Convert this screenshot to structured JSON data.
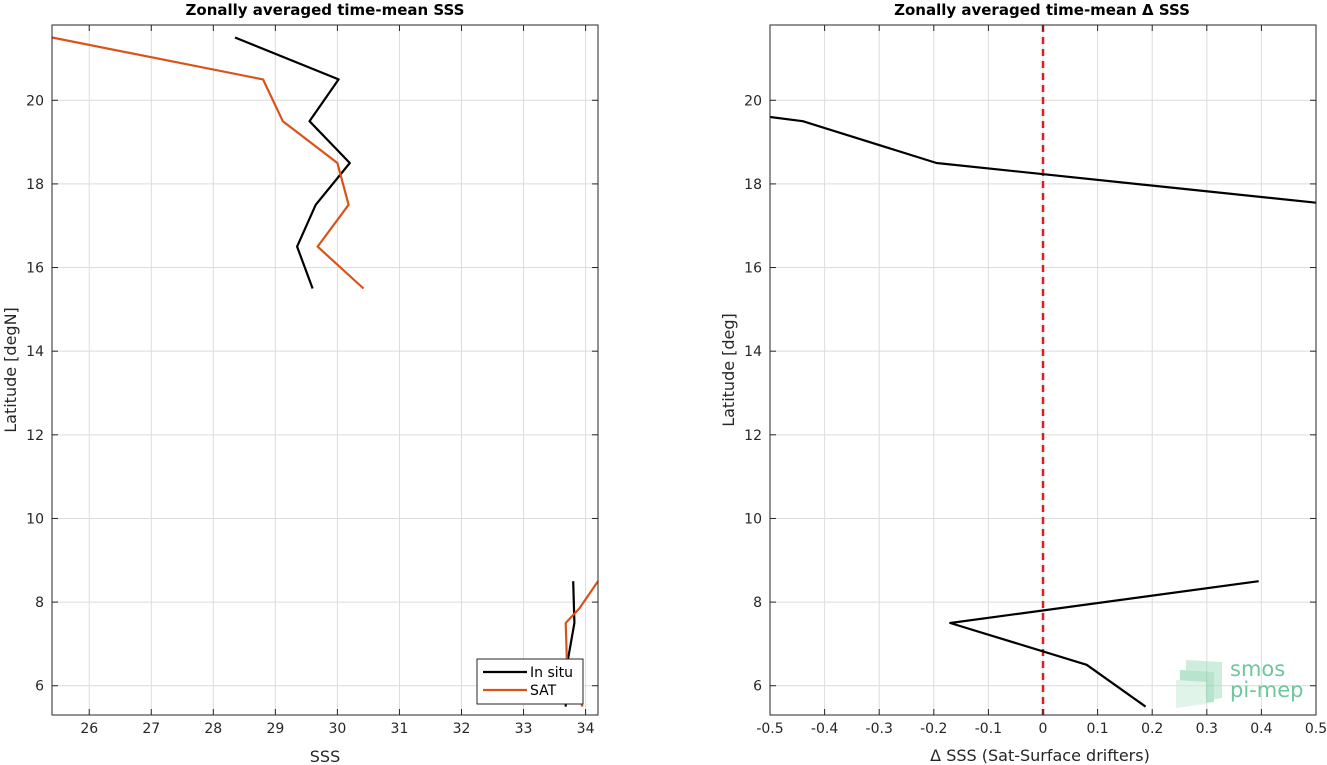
{
  "chart_data": [
    {
      "type": "line",
      "title": "Zonally averaged time-mean SSS",
      "xlabel": "SSS",
      "ylabel": "Latitude [degN]",
      "xlim": [
        25.4,
        34.2
      ],
      "ylim": [
        5.3,
        21.8
      ],
      "xticks": [
        26,
        27,
        28,
        29,
        30,
        31,
        32,
        33,
        34
      ],
      "yticks": [
        6,
        8,
        10,
        12,
        14,
        16,
        18,
        20
      ],
      "grid": true,
      "legend_position": "bottom-right",
      "series": [
        {
          "name": "In situ",
          "color": "#000000",
          "segments": [
            [
              [
                28.35,
                21.5
              ],
              [
                30.02,
                20.5
              ],
              [
                29.55,
                19.5
              ],
              [
                30.2,
                18.5
              ],
              [
                29.65,
                17.5
              ],
              [
                29.35,
                16.5
              ],
              [
                29.6,
                15.5
              ]
            ],
            [
              [
                33.8,
                8.5
              ],
              [
                33.82,
                7.5
              ],
              [
                33.7,
                6.5
              ],
              [
                33.68,
                5.5
              ]
            ]
          ]
        },
        {
          "name": "SAT",
          "color": "#d95319",
          "segments": [
            [
              [
                25.4,
                21.5
              ],
              [
                28.8,
                20.5
              ],
              [
                29.12,
                19.5
              ],
              [
                30.0,
                18.5
              ],
              [
                30.18,
                17.5
              ],
              [
                29.68,
                16.5
              ],
              [
                30.42,
                15.5
              ]
            ],
            [
              [
                34.2,
                8.5
              ],
              [
                33.9,
                7.85
              ],
              [
                33.68,
                7.5
              ],
              [
                33.7,
                6.5
              ],
              [
                33.95,
                5.5
              ]
            ]
          ]
        }
      ]
    },
    {
      "type": "line",
      "title": "Zonally averaged time-mean Δ SSS",
      "xlabel": "Δ SSS (Sat-Surface drifters)",
      "ylabel": "Latitude [deg]",
      "xlim": [
        -0.5,
        0.5
      ],
      "ylim": [
        5.3,
        21.8
      ],
      "xticks": [
        -0.5,
        -0.4,
        -0.3,
        -0.2,
        -0.1,
        0,
        0.1,
        0.2,
        0.3,
        0.4,
        0.5
      ],
      "xticklabels": [
        "-0.5",
        "-0.4",
        "-0.3",
        "-0.2",
        "-0.1",
        "0",
        "0.1",
        "0.2",
        "0.3",
        "0.4",
        "0.5"
      ],
      "yticks": [
        6,
        8,
        10,
        12,
        14,
        16,
        18,
        20
      ],
      "grid": true,
      "reference_line": {
        "x": 0,
        "color": "#e41a1c",
        "style": "dashed"
      },
      "series": [
        {
          "color": "#000000",
          "segments": [
            [
              [
                -0.5,
                19.6
              ],
              [
                -0.44,
                19.5
              ],
              [
                -0.195,
                18.5
              ],
              [
                0.5,
                17.55
              ]
            ],
            [
              [
                0.395,
                8.5
              ],
              [
                -0.17,
                7.5
              ],
              [
                0.08,
                6.5
              ],
              [
                0.188,
                5.5
              ]
            ]
          ]
        }
      ]
    }
  ],
  "logo": {
    "line1": "smos",
    "line2": "pi-mep",
    "color": "#6cc79b"
  }
}
